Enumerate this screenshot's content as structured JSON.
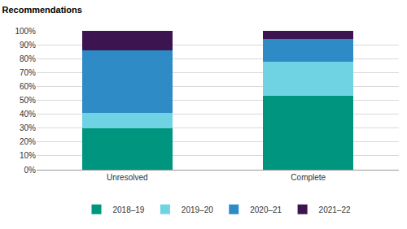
{
  "chart_data": {
    "type": "bar",
    "title": "Recommendations",
    "categories": [
      "Unresolved",
      "Complete"
    ],
    "series": [
      {
        "name": "2018–19",
        "color": "#00957f",
        "values": [
          30,
          53
        ]
      },
      {
        "name": "2019–20",
        "color": "#6fd3e3",
        "values": [
          11,
          25
        ]
      },
      {
        "name": "2020–21",
        "color": "#2e8bc6",
        "values": [
          45,
          16
        ]
      },
      {
        "name": "2021–22",
        "color": "#3b1450",
        "values": [
          14,
          6
        ]
      }
    ],
    "stacked": true,
    "ylim": [
      0,
      100
    ],
    "yticks": [
      {
        "value": 0,
        "label": "0%"
      },
      {
        "value": 10,
        "label": "10%"
      },
      {
        "value": 20,
        "label": "20%"
      },
      {
        "value": 30,
        "label": "30%"
      },
      {
        "value": 40,
        "label": "40%"
      },
      {
        "value": 50,
        "label": "50%"
      },
      {
        "value": 60,
        "label": "60%"
      },
      {
        "value": 70,
        "label": "70%"
      },
      {
        "value": 80,
        "label": "80%"
      },
      {
        "value": 90,
        "label": "90%"
      },
      {
        "value": 100,
        "label": "100%"
      }
    ],
    "grid": true,
    "legend": "bottom"
  }
}
